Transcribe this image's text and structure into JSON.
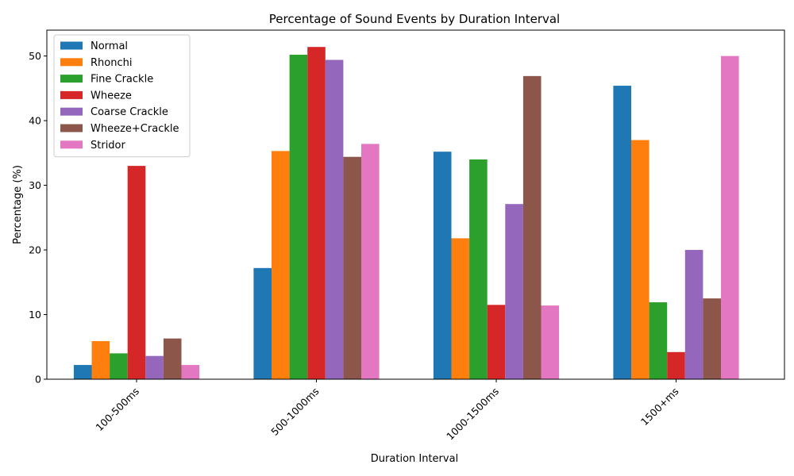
{
  "chart_data": {
    "type": "bar",
    "title": "Percentage of Sound Events by Duration Interval",
    "xlabel": "Duration Interval",
    "ylabel": "Percentage (%)",
    "categories": [
      "100-500ms",
      "500-1000ms",
      "1000-1500ms",
      "1500+ms"
    ],
    "ylim": [
      0,
      54
    ],
    "yticks": [
      0,
      10,
      20,
      30,
      40,
      50
    ],
    "legend_position": "top-left",
    "grid": false,
    "series": [
      {
        "name": "Normal",
        "color": "#1f77b4",
        "values": [
          2.2,
          17.2,
          35.2,
          45.4
        ]
      },
      {
        "name": "Rhonchi",
        "color": "#ff7f0e",
        "values": [
          5.9,
          35.3,
          21.8,
          37.0
        ]
      },
      {
        "name": "Fine Crackle",
        "color": "#2ca02c",
        "values": [
          4.0,
          50.2,
          34.0,
          11.9
        ]
      },
      {
        "name": "Wheeze",
        "color": "#d62728",
        "values": [
          33.0,
          51.4,
          11.5,
          4.2
        ]
      },
      {
        "name": "Coarse Crackle",
        "color": "#9467bd",
        "values": [
          3.6,
          49.4,
          27.1,
          20.0
        ]
      },
      {
        "name": "Wheeze+Crackle",
        "color": "#8c564b",
        "values": [
          6.3,
          34.4,
          46.9,
          12.5
        ]
      },
      {
        "name": "Stridor",
        "color": "#e377c2",
        "values": [
          2.2,
          36.4,
          11.4,
          50.0
        ]
      }
    ]
  }
}
